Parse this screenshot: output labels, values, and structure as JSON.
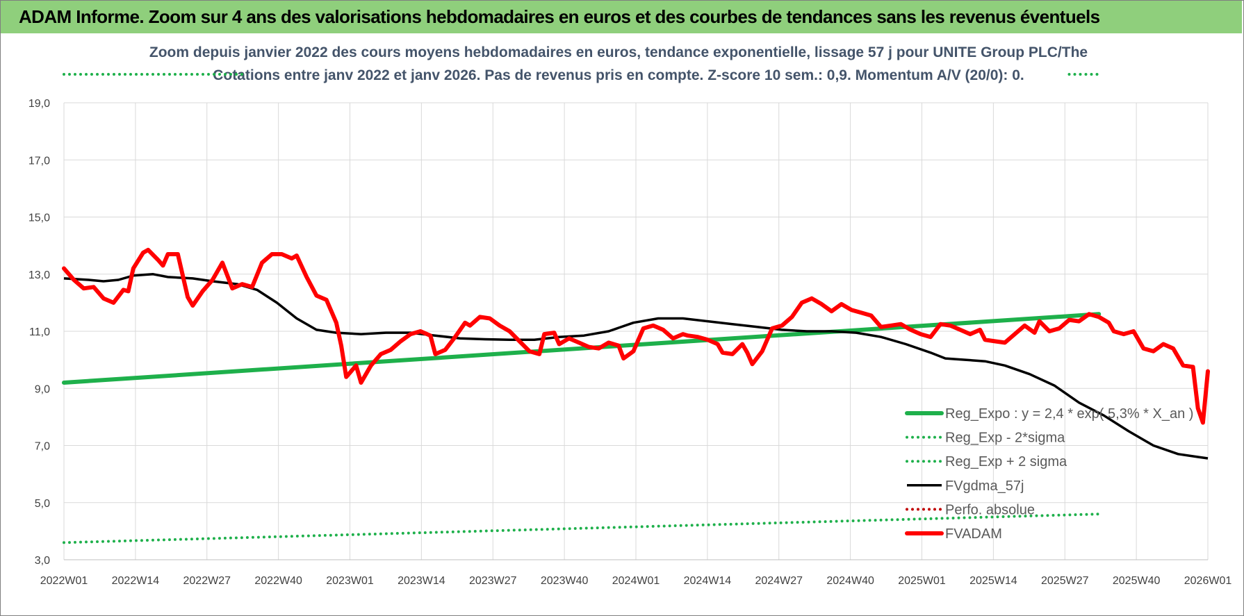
{
  "header": {
    "title": "ADAM Informe. Zoom sur 4 ans des valorisations hebdomadaires en euros et des courbes de tendances sans les revenus éventuels"
  },
  "colors": {
    "banner": "#8fcf7c",
    "reg": "#1eb04b",
    "fvgdma": "#000000",
    "fvadam": "#ff0000",
    "perfo": "#c00000",
    "grid": "#d9d9d9"
  },
  "chart_data": {
    "type": "line",
    "title_line1": "Zoom depuis janvier 2022 des cours moyens hebdomadaires en euros, tendance exponentielle, lissage 57 j pour UNITE Group PLC/The",
    "title_line2": "Cotations entre janv 2022 et janv 2026. Pas de revenus pris en compte. Z-score 10 sem.: 0,9. Momentum A/V (20/0): 0.",
    "ylim": [
      3,
      20
    ],
    "y_ticks": [
      "3,0",
      "5,0",
      "7,0",
      "9,0",
      "11,0",
      "13,0",
      "15,0",
      "17,0",
      "19,0"
    ],
    "x_ticks": [
      "2022W01",
      "2022W14",
      "2022W27",
      "2022W40",
      "2023W01",
      "2023W14",
      "2023W27",
      "2023W40",
      "2024W01",
      "2024W14",
      "2024W27",
      "2024W40",
      "2025W01",
      "2025W14",
      "2025W27",
      "2025W40",
      "2026W01"
    ],
    "grid": true,
    "legend_position": "bottom-right",
    "series": [
      {
        "name": "Reg_Expo : y = 2,4 * exp( 5,3% * X_an )",
        "style": "solid-thick",
        "color": "#1eb04b",
        "points": [
          [
            0,
            9.2
          ],
          [
            209,
            11.6
          ]
        ]
      },
      {
        "name": "Reg_Exp - 2*sigma",
        "style": "dotted",
        "color": "#1eb04b",
        "points": [
          [
            0,
            3.6
          ],
          [
            209,
            4.6
          ]
        ]
      },
      {
        "name": "Reg_Exp + 2 sigma",
        "style": "dotted",
        "color": "#1eb04b",
        "points": [
          [
            0,
            20
          ],
          [
            6,
            20
          ],
          [
            203,
            20
          ],
          [
            209,
            20
          ]
        ]
      },
      {
        "name": "FVgdma_57j",
        "style": "solid",
        "color": "#000000",
        "points": [
          [
            0,
            12.85
          ],
          [
            5,
            12.8
          ],
          [
            8,
            12.75
          ],
          [
            11,
            12.8
          ],
          [
            14,
            12.95
          ],
          [
            18,
            13.0
          ],
          [
            21,
            12.9
          ],
          [
            26,
            12.85
          ],
          [
            30,
            12.75
          ],
          [
            35,
            12.65
          ],
          [
            39,
            12.45
          ],
          [
            43,
            12.0
          ],
          [
            47,
            11.45
          ],
          [
            51,
            11.05
          ],
          [
            55,
            10.95
          ],
          [
            60,
            10.9
          ],
          [
            65,
            10.95
          ],
          [
            70,
            10.95
          ],
          [
            75,
            10.85
          ],
          [
            80,
            10.75
          ],
          [
            85,
            10.72
          ],
          [
            90,
            10.7
          ],
          [
            95,
            10.7
          ],
          [
            100,
            10.8
          ],
          [
            105,
            10.85
          ],
          [
            110,
            11.0
          ],
          [
            115,
            11.3
          ],
          [
            120,
            11.45
          ],
          [
            125,
            11.45
          ],
          [
            130,
            11.35
          ],
          [
            135,
            11.25
          ],
          [
            140,
            11.15
          ],
          [
            145,
            11.05
          ],
          [
            150,
            11.0
          ],
          [
            155,
            11.0
          ],
          [
            160,
            10.95
          ],
          [
            165,
            10.8
          ],
          [
            170,
            10.55
          ],
          [
            175,
            10.25
          ],
          [
            178,
            10.05
          ],
          [
            182,
            10.0
          ],
          [
            186,
            9.95
          ],
          [
            190,
            9.8
          ],
          [
            195,
            9.5
          ],
          [
            200,
            9.1
          ],
          [
            205,
            8.5
          ],
          [
            210,
            8.05
          ],
          [
            215,
            7.5
          ],
          [
            220,
            7.0
          ],
          [
            225,
            6.7
          ],
          [
            229,
            6.6
          ],
          [
            231,
            6.55
          ]
        ]
      },
      {
        "name": "Perfo. absolue",
        "style": "dotted",
        "color": "#c00000",
        "points": []
      },
      {
        "name": "FVADAM",
        "style": "solid-thick",
        "color": "#ff0000",
        "points": [
          [
            0,
            13.2
          ],
          [
            2,
            12.8
          ],
          [
            4,
            12.5
          ],
          [
            6,
            12.55
          ],
          [
            8,
            12.15
          ],
          [
            10,
            12.0
          ],
          [
            12,
            12.45
          ],
          [
            13,
            12.4
          ],
          [
            14,
            13.2
          ],
          [
            16,
            13.75
          ],
          [
            17,
            13.85
          ],
          [
            19,
            13.5
          ],
          [
            20,
            13.3
          ],
          [
            21,
            13.7
          ],
          [
            23,
            13.7
          ],
          [
            25,
            12.2
          ],
          [
            26,
            11.9
          ],
          [
            28,
            12.4
          ],
          [
            30,
            12.8
          ],
          [
            32,
            13.4
          ],
          [
            34,
            12.5
          ],
          [
            36,
            12.65
          ],
          [
            38,
            12.55
          ],
          [
            40,
            13.4
          ],
          [
            42,
            13.7
          ],
          [
            44,
            13.7
          ],
          [
            46,
            13.55
          ],
          [
            47,
            13.65
          ],
          [
            49,
            12.9
          ],
          [
            51,
            12.25
          ],
          [
            53,
            12.1
          ],
          [
            55,
            11.3
          ],
          [
            56,
            10.5
          ],
          [
            57,
            9.4
          ],
          [
            59,
            9.8
          ],
          [
            60,
            9.2
          ],
          [
            62,
            9.8
          ],
          [
            64,
            10.2
          ],
          [
            66,
            10.35
          ],
          [
            68,
            10.65
          ],
          [
            70,
            10.9
          ],
          [
            72,
            11.0
          ],
          [
            74,
            10.85
          ],
          [
            75,
            10.2
          ],
          [
            77,
            10.35
          ],
          [
            79,
            10.8
          ],
          [
            81,
            11.3
          ],
          [
            82,
            11.2
          ],
          [
            84,
            11.5
          ],
          [
            86,
            11.45
          ],
          [
            88,
            11.2
          ],
          [
            90,
            11.0
          ],
          [
            92,
            10.65
          ],
          [
            94,
            10.3
          ],
          [
            96,
            10.2
          ],
          [
            97,
            10.9
          ],
          [
            99,
            10.95
          ],
          [
            100,
            10.55
          ],
          [
            102,
            10.75
          ],
          [
            104,
            10.6
          ],
          [
            106,
            10.45
          ],
          [
            108,
            10.4
          ],
          [
            110,
            10.6
          ],
          [
            112,
            10.5
          ],
          [
            113,
            10.05
          ],
          [
            115,
            10.3
          ],
          [
            117,
            11.1
          ],
          [
            119,
            11.2
          ],
          [
            121,
            11.05
          ],
          [
            123,
            10.75
          ],
          [
            125,
            10.9
          ],
          [
            126,
            10.85
          ],
          [
            128,
            10.8
          ],
          [
            130,
            10.7
          ],
          [
            132,
            10.55
          ],
          [
            133,
            10.25
          ],
          [
            135,
            10.2
          ],
          [
            137,
            10.55
          ],
          [
            138,
            10.25
          ],
          [
            139,
            9.85
          ],
          [
            141,
            10.3
          ],
          [
            143,
            11.1
          ],
          [
            145,
            11.2
          ],
          [
            147,
            11.5
          ],
          [
            149,
            12.0
          ],
          [
            151,
            12.15
          ],
          [
            153,
            11.95
          ],
          [
            155,
            11.7
          ],
          [
            157,
            11.95
          ],
          [
            159,
            11.75
          ],
          [
            161,
            11.65
          ],
          [
            163,
            11.55
          ],
          [
            165,
            11.15
          ],
          [
            167,
            11.2
          ],
          [
            169,
            11.25
          ],
          [
            171,
            11.05
          ],
          [
            173,
            10.9
          ],
          [
            175,
            10.8
          ],
          [
            177,
            11.25
          ],
          [
            179,
            11.2
          ],
          [
            181,
            11.05
          ],
          [
            183,
            10.9
          ],
          [
            185,
            11.05
          ],
          [
            186,
            10.7
          ],
          [
            188,
            10.65
          ],
          [
            190,
            10.6
          ],
          [
            192,
            10.9
          ],
          [
            194,
            11.2
          ],
          [
            196,
            10.95
          ],
          [
            197,
            11.35
          ],
          [
            199,
            11.0
          ],
          [
            201,
            11.1
          ],
          [
            203,
            11.4
          ],
          [
            205,
            11.35
          ],
          [
            207,
            11.6
          ],
          [
            209,
            11.5
          ],
          [
            211,
            11.3
          ],
          [
            212,
            11.0
          ],
          [
            214,
            10.9
          ],
          [
            216,
            11.0
          ],
          [
            218,
            10.4
          ],
          [
            220,
            10.3
          ],
          [
            222,
            10.55
          ],
          [
            224,
            10.4
          ],
          [
            226,
            9.8
          ],
          [
            228,
            9.75
          ],
          [
            229,
            8.3
          ],
          [
            230,
            7.8
          ],
          [
            231,
            9.6
          ]
        ]
      }
    ]
  },
  "legend": {
    "items": [
      {
        "label": "Reg_Expo : y = 2,4 * exp( 5,3% * X_an )",
        "style": "solid-thick",
        "color": "#1eb04b"
      },
      {
        "label": "Reg_Exp - 2*sigma",
        "style": "dotted",
        "color": "#1eb04b"
      },
      {
        "label": "Reg_Exp + 2 sigma",
        "style": "dotted",
        "color": "#1eb04b"
      },
      {
        "label": "FVgdma_57j",
        "style": "solid",
        "color": "#000000"
      },
      {
        "label": "Perfo. absolue",
        "style": "dotted",
        "color": "#c00000"
      },
      {
        "label": "FVADAM",
        "style": "solid-thick",
        "color": "#ff0000"
      }
    ]
  }
}
